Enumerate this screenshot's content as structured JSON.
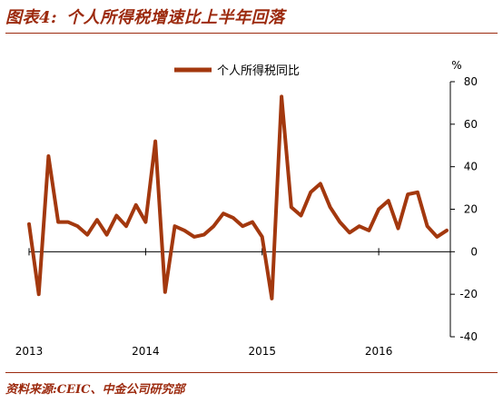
{
  "header": {
    "figure_label": "图表4:",
    "title": "个人所得税增速比上半年回落"
  },
  "footer": {
    "source": "资料来源:CEIC、中金公司研究部"
  },
  "chart_data": {
    "type": "line",
    "title": "个人所得税增速比上半年回落",
    "y_unit": "%",
    "ylim": [
      -40,
      80
    ],
    "y_ticks": [
      80,
      60,
      40,
      20,
      0,
      -20,
      -40
    ],
    "x_tick_labels": [
      "2013",
      "2014",
      "2015",
      "2016"
    ],
    "legend_position": "top",
    "grid": false,
    "series": [
      {
        "name": "个人所得税同比",
        "color": "#a3380e",
        "values": [
          13,
          -20,
          45,
          14,
          14,
          12,
          8,
          15,
          8,
          17,
          12,
          22,
          14,
          52,
          -19,
          12,
          10,
          7,
          8,
          12,
          18,
          16,
          12,
          14,
          7,
          -22,
          73,
          21,
          17,
          28,
          32,
          21,
          14,
          9,
          12,
          10,
          20,
          24,
          11,
          27,
          28,
          12,
          7,
          10
        ]
      }
    ]
  }
}
